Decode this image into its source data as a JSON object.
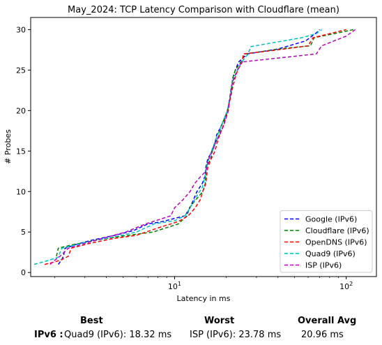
{
  "chart_data": {
    "type": "line",
    "title": "May_2024: TCP Latency Comparison with Cloudflare (mean)",
    "xlabel": "Latency in ms",
    "ylabel": "# Probes",
    "xscale": "log",
    "xlim": [
      1.45,
      150
    ],
    "ylim": [
      -0.5,
      31.5
    ],
    "xticks": [
      {
        "value": 10,
        "label": "10^1",
        "base": "10",
        "exp": "1"
      },
      {
        "value": 100,
        "label": "10^2",
        "base": "10",
        "exp": "2"
      }
    ],
    "yticks": [
      0,
      5,
      10,
      15,
      20,
      25,
      30
    ],
    "legend_position": "lower-right",
    "grid": false,
    "series": [
      {
        "name": "Google (IPv6)",
        "color": "#0000ff",
        "points": [
          [
            2.1,
            1
          ],
          [
            2.2,
            1.6
          ],
          [
            2.25,
            2
          ],
          [
            2.3,
            3
          ],
          [
            2.7,
            3.5
          ],
          [
            3.3,
            4
          ],
          [
            4.5,
            4.6
          ],
          [
            5.8,
            5.2
          ],
          [
            7,
            6
          ],
          [
            8.5,
            6.3
          ],
          [
            10.5,
            6.8
          ],
          [
            11.5,
            7
          ],
          [
            12.3,
            8
          ],
          [
            13.5,
            10
          ],
          [
            14.5,
            11
          ],
          [
            15.1,
            12
          ],
          [
            15.2,
            13
          ],
          [
            15.6,
            14
          ],
          [
            16.5,
            15
          ],
          [
            17.2,
            16
          ],
          [
            17.6,
            17
          ],
          [
            18.6,
            18
          ],
          [
            19.6,
            19
          ],
          [
            20.3,
            20
          ],
          [
            21.3,
            22
          ],
          [
            21.8,
            24
          ],
          [
            22.6,
            25
          ],
          [
            23.6,
            26
          ],
          [
            25.6,
            26.7
          ],
          [
            26.5,
            27
          ],
          [
            40,
            27.6
          ],
          [
            58,
            28.6
          ],
          [
            67,
            29.6
          ],
          [
            70,
            30
          ]
        ]
      },
      {
        "name": "Cloudflare (IPv6)",
        "color": "#008000",
        "points": [
          [
            2.05,
            2
          ],
          [
            2.1,
            3
          ],
          [
            2.5,
            3.4
          ],
          [
            3.5,
            4
          ],
          [
            5,
            4.5
          ],
          [
            7.5,
            5
          ],
          [
            10.5,
            6
          ],
          [
            11.8,
            7
          ],
          [
            12.2,
            8
          ],
          [
            13.3,
            9
          ],
          [
            14.6,
            10
          ],
          [
            15.1,
            11
          ],
          [
            15.2,
            12
          ],
          [
            15.3,
            13
          ],
          [
            16.2,
            14
          ],
          [
            16.6,
            15
          ],
          [
            17.3,
            16
          ],
          [
            18.2,
            17
          ],
          [
            18.6,
            18
          ],
          [
            19.5,
            19
          ],
          [
            20.3,
            20
          ],
          [
            21.4,
            22
          ],
          [
            21.8,
            24
          ],
          [
            22.6,
            25
          ],
          [
            24.3,
            26
          ],
          [
            25.6,
            27
          ],
          [
            44,
            27.7
          ],
          [
            62,
            28
          ],
          [
            65,
            29
          ],
          [
            90,
            29.6
          ],
          [
            110,
            30
          ]
        ]
      },
      {
        "name": "OpenDNS (IPv6)",
        "color": "#ff0000",
        "points": [
          [
            1.75,
            1
          ],
          [
            2.0,
            1.3
          ],
          [
            2.2,
            1.6
          ],
          [
            2.4,
            2
          ],
          [
            2.5,
            3
          ],
          [
            3.2,
            3.6
          ],
          [
            4.4,
            4.2
          ],
          [
            6,
            4.6
          ],
          [
            8,
            5.5
          ],
          [
            10.5,
            6.3
          ],
          [
            12,
            7
          ],
          [
            13.2,
            8
          ],
          [
            14.1,
            9
          ],
          [
            14.6,
            10
          ],
          [
            15.2,
            11
          ],
          [
            15.4,
            12
          ],
          [
            15.6,
            13
          ],
          [
            16.3,
            14
          ],
          [
            17.2,
            15
          ],
          [
            17.7,
            16
          ],
          [
            18.3,
            17
          ],
          [
            19.1,
            18
          ],
          [
            19.8,
            19
          ],
          [
            20.5,
            20
          ],
          [
            21.3,
            22
          ],
          [
            21.9,
            23
          ],
          [
            22.5,
            24
          ],
          [
            23.3,
            25
          ],
          [
            24.8,
            26
          ],
          [
            25.1,
            27
          ],
          [
            37,
            27.4
          ],
          [
            60,
            28
          ],
          [
            64,
            29
          ],
          [
            100,
            30
          ]
        ]
      },
      {
        "name": "Quad9 (IPv6)",
        "color": "#00bfbf",
        "points": [
          [
            1.52,
            1
          ],
          [
            1.85,
            1.5
          ],
          [
            2.1,
            1.9
          ],
          [
            2.2,
            3
          ],
          [
            3,
            3.7
          ],
          [
            4.2,
            4.3
          ],
          [
            6,
            5
          ],
          [
            7.6,
            6
          ],
          [
            10,
            6.4
          ],
          [
            11.5,
            7
          ],
          [
            12.3,
            8
          ],
          [
            13.5,
            9.5
          ],
          [
            14.5,
            10.5
          ],
          [
            15.1,
            12
          ],
          [
            15.3,
            13
          ],
          [
            15.8,
            14
          ],
          [
            16.4,
            15
          ],
          [
            17.1,
            16
          ],
          [
            17.8,
            17
          ],
          [
            18.6,
            18
          ],
          [
            19.4,
            19
          ],
          [
            20.3,
            20
          ],
          [
            21.1,
            22
          ],
          [
            21.4,
            23
          ],
          [
            22.1,
            24
          ],
          [
            23.2,
            25
          ],
          [
            24.6,
            26
          ],
          [
            26.8,
            27
          ],
          [
            27.8,
            27.9
          ],
          [
            55,
            29
          ],
          [
            67,
            29.5
          ],
          [
            72,
            30
          ]
        ]
      },
      {
        "name": "ISP (IPv6)",
        "color": "#bf00bf",
        "points": [
          [
            1.88,
            1
          ],
          [
            2.0,
            1.5
          ],
          [
            2.15,
            2
          ],
          [
            2.4,
            3
          ],
          [
            3.5,
            4
          ],
          [
            5.2,
            5
          ],
          [
            6.8,
            6
          ],
          [
            9.5,
            7
          ],
          [
            10,
            8
          ],
          [
            11.2,
            9
          ],
          [
            12.3,
            10
          ],
          [
            13.1,
            11
          ],
          [
            14.1,
            11.8
          ],
          [
            15.2,
            12.5
          ],
          [
            15.8,
            14
          ],
          [
            16.6,
            15
          ],
          [
            17.3,
            16
          ],
          [
            18.3,
            17
          ],
          [
            19.2,
            18
          ],
          [
            19.9,
            19
          ],
          [
            20.6,
            20
          ],
          [
            21.1,
            22
          ],
          [
            21.5,
            23
          ],
          [
            22.2,
            24
          ],
          [
            23.3,
            25
          ],
          [
            24.5,
            26
          ],
          [
            67,
            27
          ],
          [
            72,
            28
          ],
          [
            100,
            29.2
          ],
          [
            113,
            30
          ]
        ]
      }
    ]
  },
  "summary": {
    "best_header": "Best",
    "worst_header": "Worst",
    "avg_header": "Overall Avg",
    "row_label": "IPv6 :",
    "best_value": "Quad9 (IPv6): 18.32 ms",
    "worst_value": "ISP (IPv6): 23.78 ms",
    "avg_value": "20.96 ms"
  }
}
